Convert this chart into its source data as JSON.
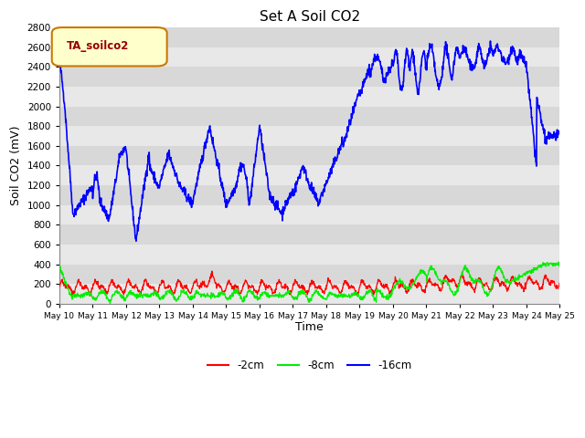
{
  "title": "Set A Soil CO2",
  "ylabel": "Soil CO2 (mV)",
  "xlabel": "Time",
  "ylim": [
    0,
    2800
  ],
  "bg_color": "#d8d8d8",
  "fig_color": "#ffffff",
  "legend_label": "TA_soilco2",
  "xtick_labels": [
    "May 10",
    "May 11",
    "May 12",
    "May 13",
    "May 14",
    "May 15",
    "May 16",
    "May 17",
    "May 18",
    "May 19",
    "May 20",
    "May 21",
    "May 22",
    "May 23",
    "May 24",
    "May 25"
  ],
  "line_colors": {
    "neg2cm": "#ff0000",
    "neg8cm": "#00ee00",
    "neg16cm": "#0000ff"
  },
  "line_labels": {
    "-2cm": "-2cm",
    "-8cm": "-8cm",
    "-16cm": "-16cm"
  },
  "grid_color": "#ffffff",
  "alt_band_color": "#e8e8e8"
}
